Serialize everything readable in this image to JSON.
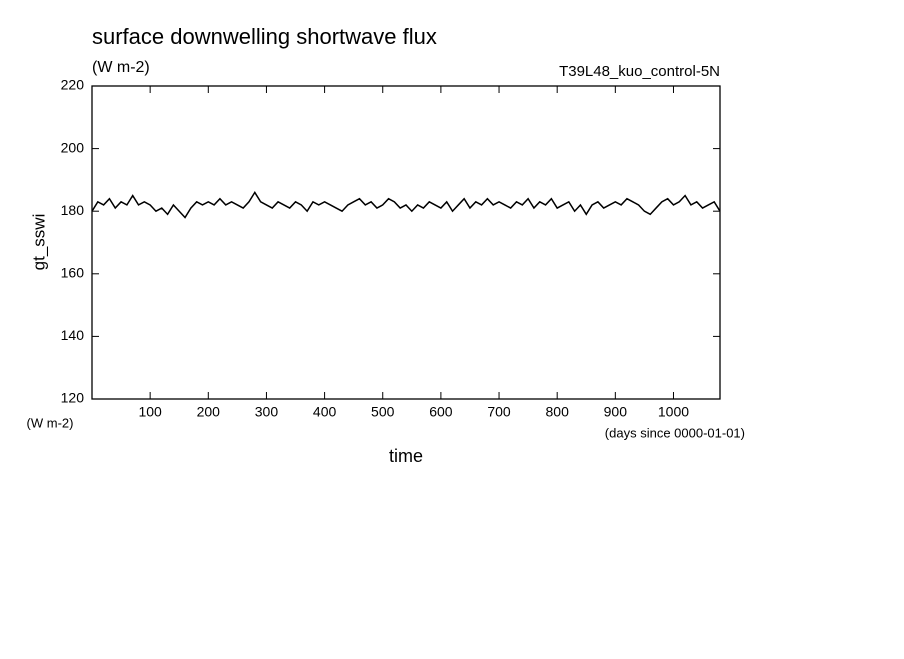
{
  "chart_data": {
    "type": "line",
    "title": "surface downwelling shortwave flux",
    "subtitle": "(W m-2)",
    "annotation": "T39L48_kuo_control-5N",
    "ylabel": "gt_sswi",
    "yunit": "(W m-2)",
    "xlabel": "time",
    "xunit": "(days since 0000-01-01)",
    "color": "#000000",
    "xlim": [
      0,
      1080
    ],
    "ylim": [
      120,
      220
    ],
    "xticks": [
      100,
      200,
      300,
      400,
      500,
      600,
      700,
      800,
      900,
      1000
    ],
    "yticks": [
      120,
      140,
      160,
      180,
      200,
      220
    ],
    "x": [
      0,
      10,
      20,
      30,
      40,
      50,
      60,
      70,
      80,
      90,
      100,
      110,
      120,
      130,
      140,
      150,
      160,
      170,
      180,
      190,
      200,
      210,
      220,
      230,
      240,
      250,
      260,
      270,
      280,
      290,
      300,
      310,
      320,
      330,
      340,
      350,
      360,
      370,
      380,
      390,
      400,
      410,
      420,
      430,
      440,
      450,
      460,
      470,
      480,
      490,
      500,
      510,
      520,
      530,
      540,
      550,
      560,
      570,
      580,
      590,
      600,
      610,
      620,
      630,
      640,
      650,
      660,
      670,
      680,
      690,
      700,
      710,
      720,
      730,
      740,
      750,
      760,
      770,
      780,
      790,
      800,
      810,
      820,
      830,
      840,
      850,
      860,
      870,
      880,
      890,
      900,
      910,
      920,
      930,
      940,
      950,
      960,
      970,
      980,
      990,
      1000,
      1010,
      1020,
      1030,
      1040,
      1050,
      1060,
      1070,
      1080
    ],
    "values": [
      180,
      183,
      182,
      184,
      181,
      183,
      182,
      185,
      182,
      183,
      182,
      180,
      181,
      179,
      182,
      180,
      178,
      181,
      183,
      182,
      183,
      182,
      184,
      182,
      183,
      182,
      181,
      183,
      186,
      183,
      182,
      181,
      183,
      182,
      181,
      183,
      182,
      180,
      183,
      182,
      183,
      182,
      181,
      180,
      182,
      183,
      184,
      182,
      183,
      181,
      182,
      184,
      183,
      181,
      182,
      180,
      182,
      181,
      183,
      182,
      181,
      183,
      180,
      182,
      184,
      181,
      183,
      182,
      184,
      182,
      183,
      182,
      181,
      183,
      182,
      184,
      181,
      183,
      182,
      184,
      181,
      182,
      183,
      180,
      182,
      179,
      182,
      183,
      181,
      182,
      183,
      182,
      184,
      183,
      182,
      180,
      179,
      181,
      183,
      184,
      182,
      183,
      185,
      182,
      183,
      181,
      182,
      183,
      180
    ]
  }
}
